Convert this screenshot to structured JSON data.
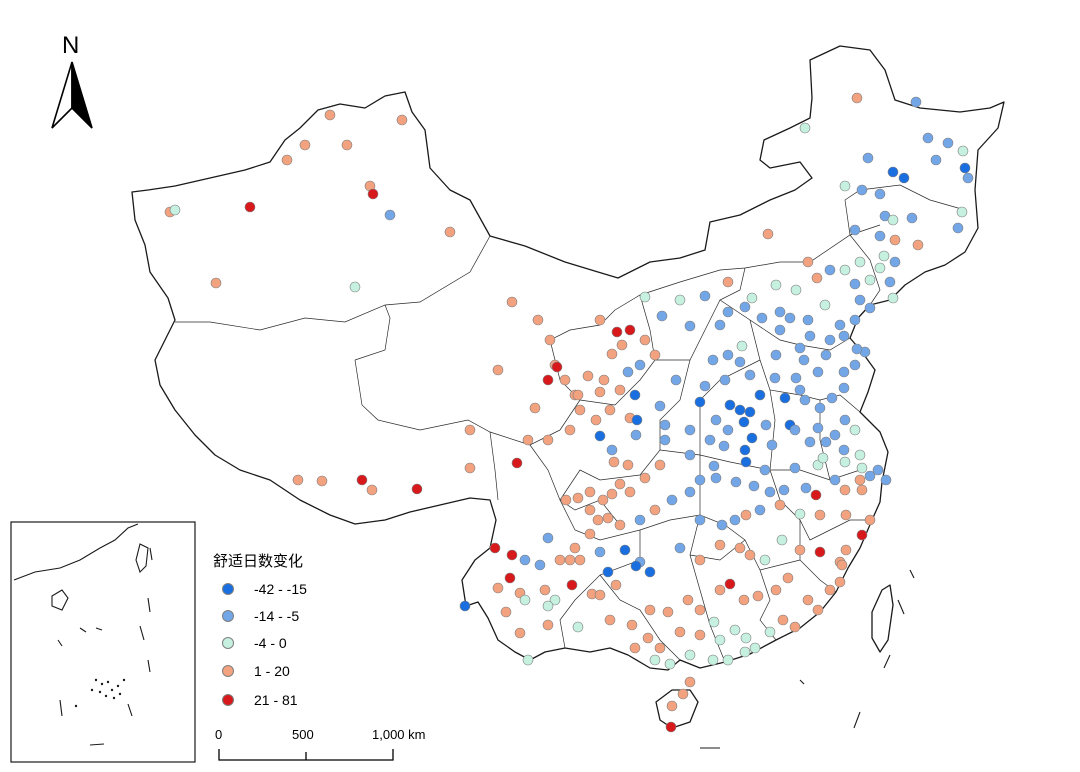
{
  "north_arrow": {
    "label": "N"
  },
  "legend": {
    "title": "舒适日数变化",
    "classes": [
      {
        "label": "-42 - -15",
        "color": "#1a6fe0"
      },
      {
        "label": "-14 - -5",
        "color": "#73a6e6"
      },
      {
        "label": "-4 - 0",
        "color": "#c6f0e0"
      },
      {
        "label": "1 - 20",
        "color": "#f2a27e"
      },
      {
        "label": "21 - 81",
        "color": "#d7191c"
      }
    ]
  },
  "scale_bar": {
    "ticks": [
      "0",
      "500",
      "1,000 km"
    ]
  }
}
